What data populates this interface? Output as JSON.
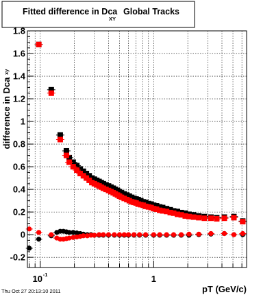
{
  "title": {
    "main": "Fitted difference in Dca",
    "sub": "XY",
    "rest": "Global Tracks"
  },
  "ylabel": {
    "main": "difference in Dca",
    "sub": "xy"
  },
  "xlabel": "pT (GeV/c)",
  "timestamp": "Thu Oct 27 20:13:10 2011",
  "colors": {
    "series1": "#000000",
    "series2": "#ff0000"
  },
  "chart_data": {
    "type": "scatter",
    "xscale": "log",
    "xlim": [
      0.077,
      6.6
    ],
    "ylim": [
      -0.29,
      1.8
    ],
    "grid": true,
    "xtick_labels": [
      "10^-1",
      "1"
    ],
    "ytick_labels": [
      "-0.2",
      "0",
      "0.2",
      "0.4",
      "0.6",
      "0.8",
      "1",
      "1.2",
      "1.4",
      "1.6",
      "1.8"
    ],
    "yticks": [
      -0.2,
      0,
      0.2,
      0.4,
      0.6,
      0.8,
      1,
      1.2,
      1.4,
      1.6,
      1.8
    ],
    "series": [
      {
        "color": "#000000",
        "marker": "square",
        "points": [
          [
            0.097,
            1.68
          ],
          [
            0.125,
            1.28
          ],
          [
            0.15,
            0.88
          ],
          [
            0.17,
            0.74
          ],
          [
            0.18,
            0.68
          ],
          [
            0.195,
            0.64
          ],
          [
            0.21,
            0.61
          ],
          [
            0.225,
            0.58
          ],
          [
            0.24,
            0.56
          ],
          [
            0.255,
            0.54
          ],
          [
            0.27,
            0.52
          ],
          [
            0.285,
            0.5
          ],
          [
            0.3,
            0.49
          ],
          [
            0.315,
            0.48
          ],
          [
            0.33,
            0.47
          ],
          [
            0.345,
            0.46
          ],
          [
            0.36,
            0.45
          ],
          [
            0.38,
            0.44
          ],
          [
            0.4,
            0.43
          ],
          [
            0.42,
            0.42
          ],
          [
            0.44,
            0.41
          ],
          [
            0.46,
            0.4
          ],
          [
            0.48,
            0.39
          ],
          [
            0.5,
            0.38
          ],
          [
            0.52,
            0.37
          ],
          [
            0.55,
            0.36
          ],
          [
            0.58,
            0.35
          ],
          [
            0.61,
            0.34
          ],
          [
            0.64,
            0.33
          ],
          [
            0.67,
            0.32
          ],
          [
            0.7,
            0.315
          ],
          [
            0.73,
            0.31
          ],
          [
            0.77,
            0.3
          ],
          [
            0.81,
            0.29
          ],
          [
            0.85,
            0.285
          ],
          [
            0.9,
            0.275
          ],
          [
            0.95,
            0.27
          ],
          [
            1.0,
            0.26
          ],
          [
            1.06,
            0.255
          ],
          [
            1.13,
            0.245
          ],
          [
            1.2,
            0.24
          ],
          [
            1.3,
            0.23
          ],
          [
            1.4,
            0.22
          ],
          [
            1.5,
            0.21
          ],
          [
            1.62,
            0.205
          ],
          [
            1.75,
            0.195
          ],
          [
            1.9,
            0.19
          ],
          [
            2.05,
            0.18
          ],
          [
            2.25,
            0.175
          ],
          [
            2.5,
            0.165
          ],
          [
            2.8,
            0.16
          ],
          [
            3.2,
            0.155
          ],
          [
            3.6,
            0.15
          ],
          [
            4.2,
            0.155
          ],
          [
            5.1,
            0.16
          ],
          [
            6.1,
            0.12
          ]
        ]
      },
      {
        "color": "#ff0000",
        "marker": "square",
        "points": [
          [
            0.097,
            1.68
          ],
          [
            0.125,
            1.25
          ],
          [
            0.15,
            0.84
          ],
          [
            0.17,
            0.7
          ],
          [
            0.18,
            0.64
          ],
          [
            0.195,
            0.6
          ],
          [
            0.21,
            0.57
          ],
          [
            0.225,
            0.54
          ],
          [
            0.24,
            0.52
          ],
          [
            0.255,
            0.5
          ],
          [
            0.27,
            0.48
          ],
          [
            0.285,
            0.46
          ],
          [
            0.3,
            0.45
          ],
          [
            0.315,
            0.44
          ],
          [
            0.33,
            0.43
          ],
          [
            0.345,
            0.42
          ],
          [
            0.36,
            0.41
          ],
          [
            0.38,
            0.4
          ],
          [
            0.4,
            0.39
          ],
          [
            0.42,
            0.38
          ],
          [
            0.44,
            0.37
          ],
          [
            0.46,
            0.36
          ],
          [
            0.48,
            0.35
          ],
          [
            0.5,
            0.34
          ],
          [
            0.52,
            0.33
          ],
          [
            0.55,
            0.32
          ],
          [
            0.58,
            0.31
          ],
          [
            0.61,
            0.3
          ],
          [
            0.64,
            0.29
          ],
          [
            0.67,
            0.285
          ],
          [
            0.7,
            0.28
          ],
          [
            0.73,
            0.27
          ],
          [
            0.77,
            0.265
          ],
          [
            0.81,
            0.26
          ],
          [
            0.85,
            0.25
          ],
          [
            0.9,
            0.245
          ],
          [
            0.95,
            0.24
          ],
          [
            1.0,
            0.23
          ],
          [
            1.06,
            0.225
          ],
          [
            1.13,
            0.215
          ],
          [
            1.2,
            0.21
          ],
          [
            1.3,
            0.205
          ],
          [
            1.4,
            0.195
          ],
          [
            1.5,
            0.19
          ],
          [
            1.62,
            0.18
          ],
          [
            1.75,
            0.175
          ],
          [
            1.9,
            0.165
          ],
          [
            2.05,
            0.16
          ],
          [
            2.25,
            0.155
          ],
          [
            2.5,
            0.15
          ],
          [
            2.8,
            0.145
          ],
          [
            3.2,
            0.145
          ],
          [
            3.6,
            0.14
          ],
          [
            4.2,
            0.145
          ],
          [
            5.1,
            0.15
          ],
          [
            6.1,
            0.115
          ]
        ]
      },
      {
        "color": "#000000",
        "marker": "circle",
        "points": [
          [
            0.08,
            -0.12
          ],
          [
            0.097,
            -0.04
          ],
          [
            0.125,
            -0.01
          ],
          [
            0.14,
            0.02
          ],
          [
            0.15,
            0.03
          ],
          [
            0.16,
            0.03
          ],
          [
            0.17,
            0.025
          ],
          [
            0.18,
            0.02
          ],
          [
            0.195,
            0.02
          ],
          [
            0.21,
            0.015
          ],
          [
            0.225,
            0.01
          ],
          [
            0.24,
            0.005
          ],
          [
            0.26,
            0.0
          ],
          [
            0.28,
            0.0
          ],
          [
            0.3,
            -0.005
          ],
          [
            0.33,
            -0.005
          ],
          [
            0.36,
            -0.005
          ],
          [
            0.4,
            -0.005
          ],
          [
            0.45,
            -0.005
          ],
          [
            0.5,
            -0.005
          ],
          [
            0.55,
            -0.005
          ],
          [
            0.6,
            -0.005
          ],
          [
            0.67,
            -0.005
          ],
          [
            0.75,
            -0.005
          ],
          [
            0.85,
            -0.005
          ],
          [
            1.0,
            -0.005
          ],
          [
            1.13,
            -0.005
          ],
          [
            1.3,
            -0.005
          ],
          [
            1.5,
            -0.005
          ],
          [
            1.75,
            -0.005
          ],
          [
            2.05,
            -0.005
          ],
          [
            2.5,
            0.0
          ],
          [
            3.2,
            0.005
          ],
          [
            4.2,
            0.01
          ],
          [
            5.1,
            0.0
          ],
          [
            6.1,
            0.0
          ]
        ]
      },
      {
        "color": "#ff0000",
        "marker": "circle",
        "points": [
          [
            0.08,
            0.05
          ],
          [
            0.097,
            0.02
          ],
          [
            0.125,
            0.0
          ],
          [
            0.14,
            -0.03
          ],
          [
            0.15,
            -0.04
          ],
          [
            0.16,
            -0.04
          ],
          [
            0.17,
            -0.035
          ],
          [
            0.18,
            -0.03
          ],
          [
            0.195,
            -0.025
          ],
          [
            0.21,
            -0.02
          ],
          [
            0.225,
            -0.015
          ],
          [
            0.24,
            -0.01
          ],
          [
            0.26,
            -0.01
          ],
          [
            0.28,
            -0.005
          ],
          [
            0.3,
            -0.005
          ],
          [
            0.33,
            0.0
          ],
          [
            0.36,
            0.0
          ],
          [
            0.4,
            0.0
          ],
          [
            0.45,
            0.0
          ],
          [
            0.5,
            0.0
          ],
          [
            0.55,
            0.0
          ],
          [
            0.6,
            0.0
          ],
          [
            0.67,
            0.0
          ],
          [
            0.75,
            0.0
          ],
          [
            0.85,
            0.0
          ],
          [
            1.0,
            0.0
          ],
          [
            1.13,
            0.0
          ],
          [
            1.3,
            0.0
          ],
          [
            1.5,
            0.0
          ],
          [
            1.75,
            0.0
          ],
          [
            2.05,
            0.005
          ],
          [
            2.5,
            0.005
          ],
          [
            3.2,
            0.01
          ],
          [
            4.2,
            0.01
          ],
          [
            5.1,
            0.0
          ],
          [
            6.1,
            0.01
          ]
        ]
      }
    ]
  }
}
